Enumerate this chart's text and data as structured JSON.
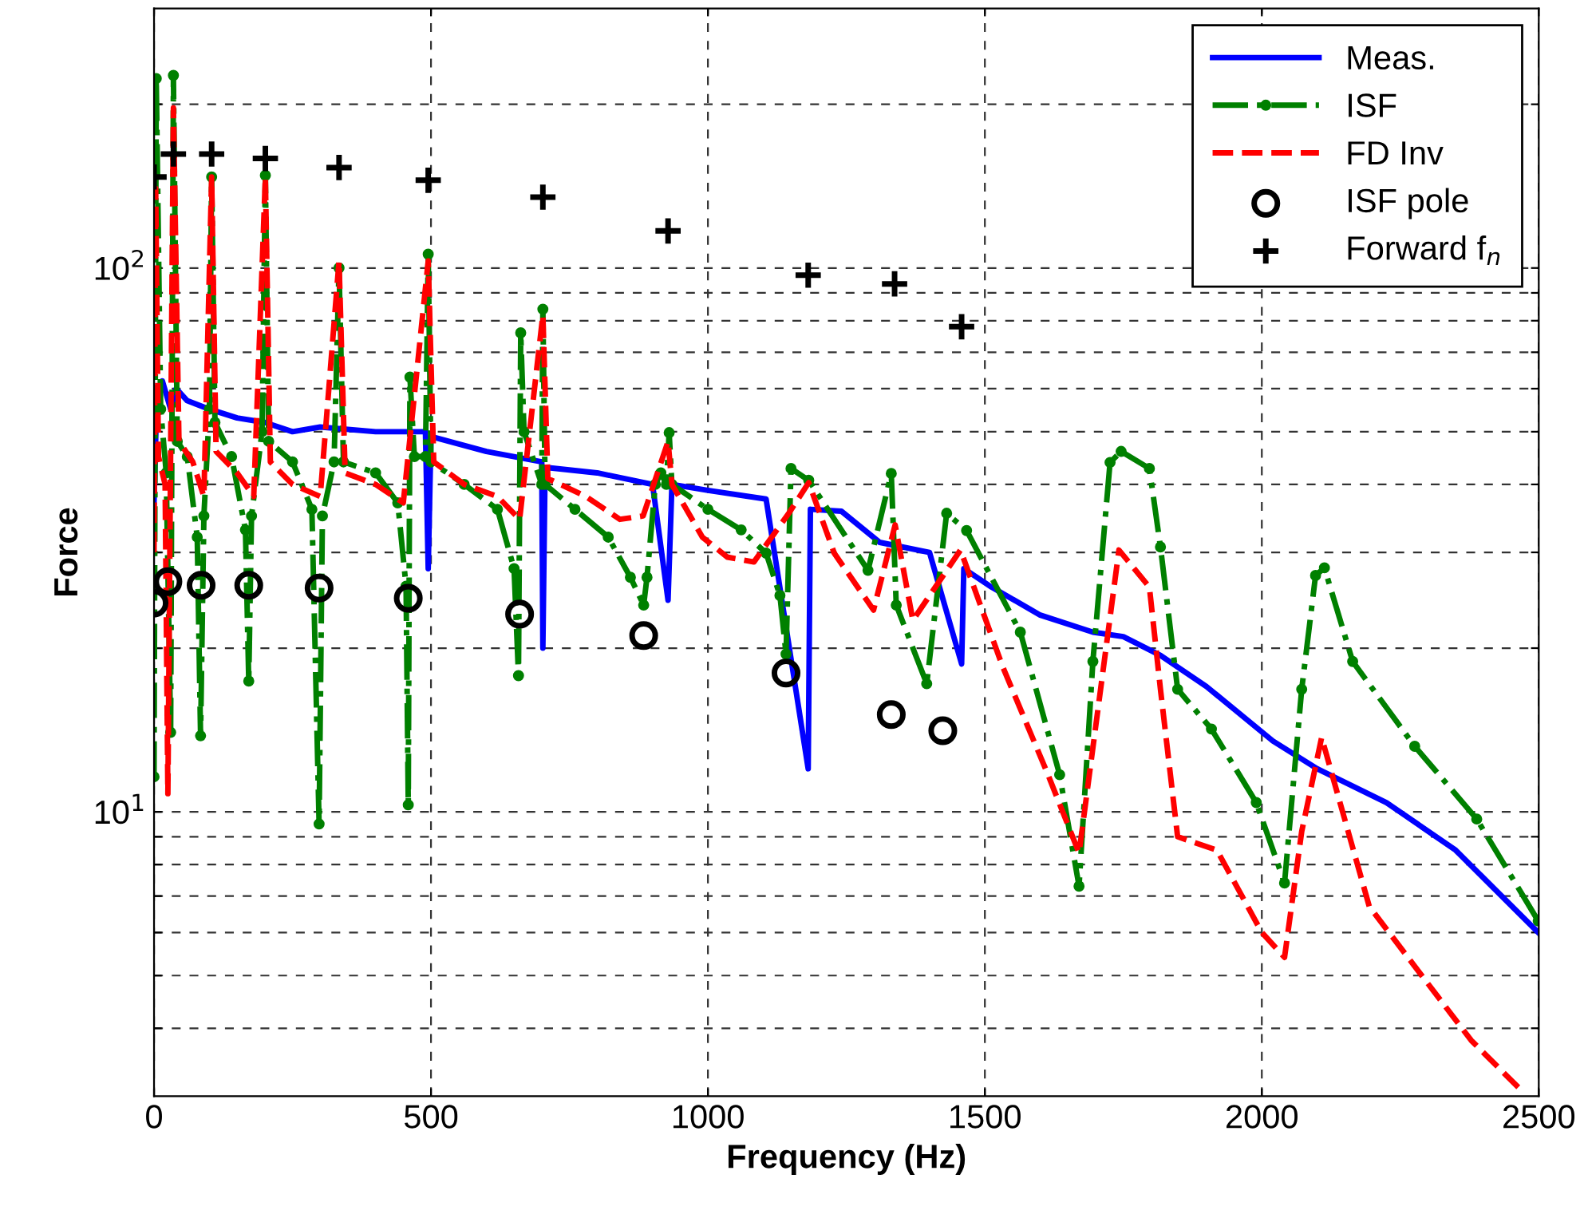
{
  "chart_data": {
    "type": "line",
    "xlabel": "Frequency (Hz)",
    "ylabel": "Force",
    "log": "y",
    "grid": true,
    "legend": "top right",
    "xlim": [
      0,
      2500
    ],
    "xticks": [
      0,
      500,
      1000,
      1500,
      2000,
      2500
    ],
    "ylim": [
      3,
      300
    ],
    "yticks": [
      {
        "value": 4,
        "label": null
      },
      {
        "value": 5,
        "label": null
      },
      {
        "value": 6,
        "label": null
      },
      {
        "value": 7,
        "label": null
      },
      {
        "value": 8,
        "label": null
      },
      {
        "value": 9,
        "label": null
      },
      {
        "value": 10,
        "label": "10$^{1}$"
      },
      {
        "value": 20,
        "label": null
      },
      {
        "value": 30,
        "label": null
      },
      {
        "value": 40,
        "label": null
      },
      {
        "value": 50,
        "label": null
      },
      {
        "value": 60,
        "label": null
      },
      {
        "value": 70,
        "label": null
      },
      {
        "value": 80,
        "label": null
      },
      {
        "value": 90,
        "label": null
      },
      {
        "value": 100,
        "label": "10$^{2}$"
      },
      {
        "value": 200,
        "label": null
      }
    ],
    "series": [
      {
        "name": "Meas.",
        "color": "#0000ff",
        "line_style": "solid",
        "marker": "none",
        "x": [
          0,
          5,
          15,
          30,
          40,
          60,
          100,
          150,
          200,
          250,
          300,
          400,
          490,
          495,
          500,
          600,
          700,
          702,
          706,
          800,
          900,
          928,
          935,
          1000,
          1105,
          1181,
          1185,
          1241,
          1310,
          1400,
          1458,
          1462,
          1512,
          1600,
          1695,
          1750,
          1817,
          1900,
          2020,
          2100,
          2225,
          2350,
          2499
        ],
        "values": [
          37,
          58,
          62,
          55,
          60,
          57,
          55,
          53,
          52,
          50,
          51,
          50,
          50,
          28,
          49,
          46,
          44,
          20,
          43,
          42,
          40,
          24.5,
          40,
          39,
          37.6,
          12,
          36,
          35.7,
          31.3,
          30,
          18.7,
          28,
          25.9,
          23,
          21.4,
          21,
          19.4,
          17,
          13.5,
          12,
          10.4,
          8.5,
          6.0
        ]
      },
      {
        "name": "ISF",
        "color": "#008000",
        "line_style": "dashdot",
        "marker": "circle",
        "x": [
          0,
          4,
          12,
          22,
          30,
          35,
          42,
          60,
          78,
          84,
          90,
          100,
          104,
          110,
          140,
          165,
          171,
          176,
          195,
          201,
          207,
          250,
          285,
          298,
          304,
          325,
          334,
          342,
          400,
          440,
          455,
          459,
          462,
          470,
          490,
          495,
          500,
          560,
          620,
          650,
          658,
          662,
          668,
          700,
          702,
          706,
          760,
          820,
          860,
          884,
          890,
          905,
          915,
          925,
          930,
          935,
          1000,
          1060,
          1105,
          1130,
          1141,
          1150,
          1182,
          1289,
          1331,
          1340,
          1395,
          1431,
          1467,
          1564,
          1635,
          1670,
          1695,
          1726,
          1746,
          1797,
          1817,
          1848,
          1909,
          1990,
          2041,
          2072,
          2097,
          2113,
          2164,
          2276,
          2388,
          2499
        ],
        "values": [
          11.6,
          223,
          55,
          42,
          14,
          226,
          48,
          45,
          32,
          13.8,
          35,
          55,
          147,
          52,
          45,
          33,
          17.4,
          35,
          50,
          148,
          48,
          44,
          36,
          9.5,
          35,
          44,
          100,
          44,
          42,
          37,
          26,
          10.3,
          63,
          45,
          45,
          106,
          44,
          40,
          36,
          28,
          17.8,
          76,
          50,
          40,
          84,
          40,
          36,
          32,
          27,
          24,
          27,
          40,
          42,
          40,
          49.8,
          40,
          36,
          33,
          29.9,
          25,
          19.5,
          42.8,
          40.7,
          27.8,
          41.9,
          24,
          17.2,
          35.4,
          32.9,
          21.4,
          11.7,
          7.3,
          18.9,
          43.9,
          46,
          42.8,
          30.7,
          16.8,
          14.2,
          10.4,
          7.4,
          16.8,
          27.2,
          28.1,
          18.9,
          13.2,
          9.7,
          6.3
        ]
      },
      {
        "name": "FD Inv",
        "color": "#ff0000",
        "line_style": "dashed",
        "marker": "none",
        "x": [
          0,
          3,
          8,
          20,
          25,
          35,
          45,
          70,
          90,
          104,
          112,
          150,
          180,
          201,
          210,
          250,
          300,
          334,
          345,
          400,
          450,
          495,
          505,
          560,
          620,
          660,
          702,
          711,
          780,
          841,
          883,
          928,
          935,
          990,
          1035,
          1083,
          1146,
          1182,
          1228,
          1299,
          1338,
          1370,
          1456,
          1532,
          1614,
          1670,
          1742,
          1797,
          1817,
          1848,
          1919,
          2000,
          2041,
          2072,
          2108,
          2194,
          2276,
          2378,
          2465
        ],
        "values": [
          30,
          140,
          45,
          40,
          10.8,
          197,
          48,
          44,
          38,
          147,
          46,
          42,
          38,
          147,
          44,
          40,
          38,
          103,
          42,
          40,
          37,
          103,
          44,
          40,
          38,
          34.5,
          82,
          41,
          38,
          34.5,
          35,
          48,
          40,
          32,
          29.4,
          28.8,
          35.4,
          40.3,
          29.9,
          23.5,
          33.7,
          22.5,
          30.3,
          18.5,
          11.7,
          8.4,
          30.3,
          25.9,
          16.8,
          9.0,
          8.5,
          6.0,
          5.4,
          9.2,
          13.7,
          6.7,
          5.2,
          3.8,
          3.1
        ]
      },
      {
        "name": "ISF pole",
        "type": "scatter",
        "color": "#000000",
        "marker": "circle",
        "x": [
          0,
          25,
          85,
          171,
          298,
          459,
          660,
          884,
          1141,
          1331,
          1424
        ],
        "values": [
          24.2,
          26.5,
          26.1,
          26.1,
          25.8,
          24.7,
          23.1,
          21.1,
          18.0,
          15.1,
          14.1
        ]
      },
      {
        "name": "Forward f$_{n}$",
        "type": "scatter",
        "color": "#000000",
        "marker": "cross",
        "x": [
          0,
          35,
          104,
          201,
          334,
          495,
          702,
          928,
          1181,
          1337,
          1458
        ],
        "values": [
          147,
          162,
          162,
          159,
          153,
          145,
          135,
          117,
          97,
          93.5,
          78
        ]
      }
    ]
  }
}
